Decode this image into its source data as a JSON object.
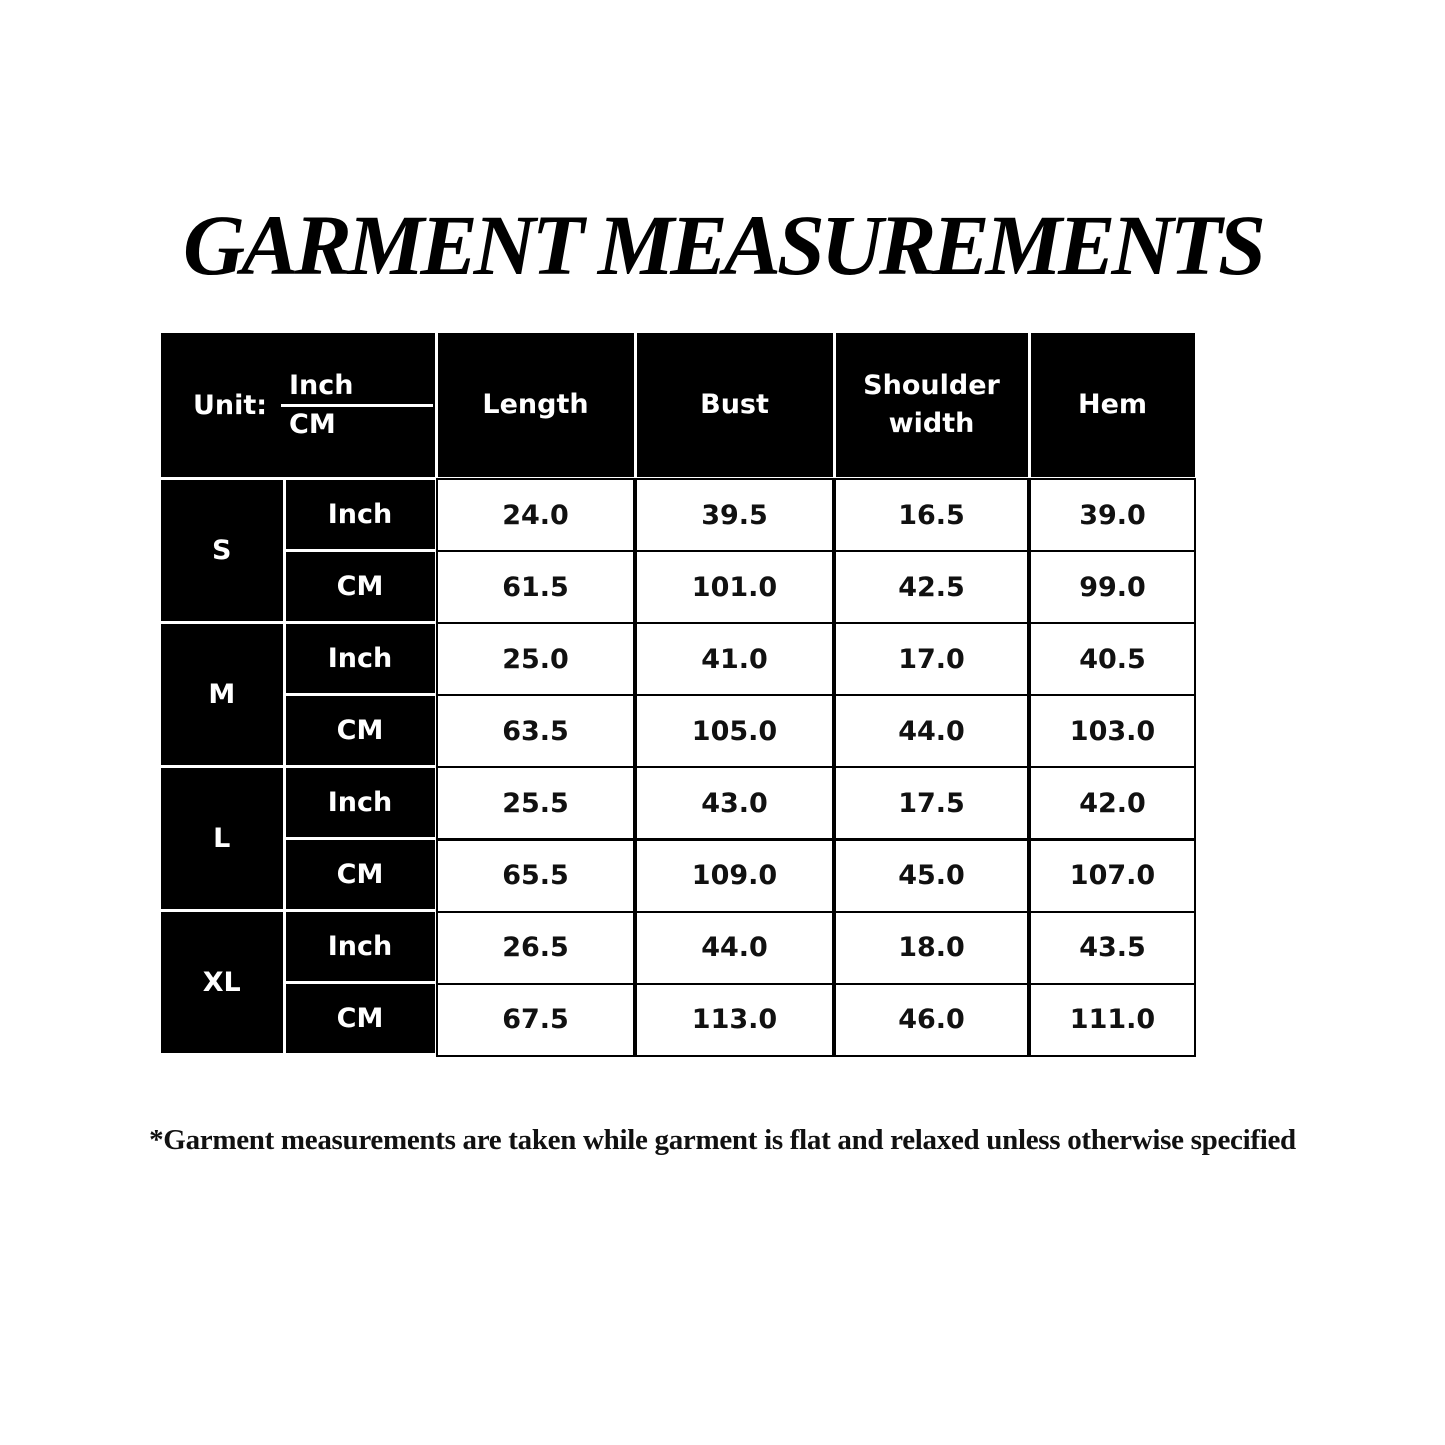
{
  "title": "GARMENT MEASUREMENTS",
  "table": {
    "unit_label": "Unit:",
    "unit_top": "Inch",
    "unit_bottom": "CM",
    "columns": [
      "Length",
      "Bust",
      "Shoulder width",
      "Hem"
    ],
    "sizes": [
      {
        "size": "S",
        "rows": [
          {
            "unit": "Inch",
            "values": [
              "24.0",
              "39.5",
              "16.5",
              "39.0"
            ]
          },
          {
            "unit": "CM",
            "values": [
              "61.5",
              "101.0",
              "42.5",
              "99.0"
            ]
          }
        ]
      },
      {
        "size": "M",
        "rows": [
          {
            "unit": "Inch",
            "values": [
              "25.0",
              "41.0",
              "17.0",
              "40.5"
            ]
          },
          {
            "unit": "CM",
            "values": [
              "63.5",
              "105.0",
              "44.0",
              "103.0"
            ]
          }
        ]
      },
      {
        "size": "L",
        "rows": [
          {
            "unit": "Inch",
            "values": [
              "25.5",
              "43.0",
              "17.5",
              "42.0"
            ]
          },
          {
            "unit": "CM",
            "values": [
              "65.5",
              "109.0",
              "45.0",
              "107.0"
            ]
          }
        ]
      },
      {
        "size": "XL",
        "rows": [
          {
            "unit": "Inch",
            "values": [
              "26.5",
              "44.0",
              "18.0",
              "43.5"
            ]
          },
          {
            "unit": "CM",
            "values": [
              "67.5",
              "113.0",
              "46.0",
              "111.0"
            ]
          }
        ]
      }
    ]
  },
  "footnote": "*Garment measurements are taken while garment is flat and relaxed unless otherwise specified"
}
